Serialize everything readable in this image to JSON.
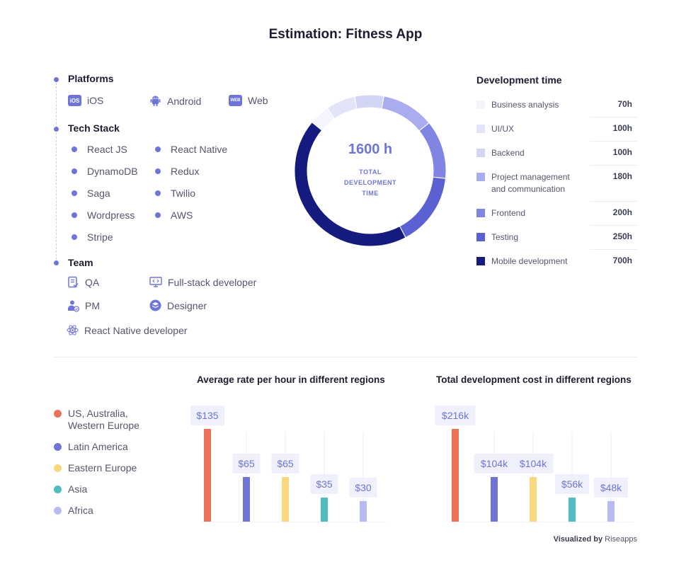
{
  "title": "Estimation: Fitness App",
  "platforms": {
    "title": "Platforms",
    "items": [
      {
        "icon": "ios-icon",
        "badge": "iOS",
        "label": "iOS"
      },
      {
        "icon": "android-icon",
        "label": "Android"
      },
      {
        "icon": "web-icon",
        "badge": "WEB",
        "label": "Web"
      }
    ]
  },
  "tech_stack": {
    "title": "Tech Stack",
    "items": [
      "React JS",
      "React Native",
      "DynamoDB",
      "Redux",
      "Saga",
      "Twilio",
      "Wordpress",
      "AWS",
      "Stripe"
    ]
  },
  "team": {
    "title": "Team",
    "items": [
      {
        "icon": "qa-icon",
        "label": "QA"
      },
      {
        "icon": "monitor-code-icon",
        "label": "Full-stack developer"
      },
      {
        "icon": "pm-icon",
        "label": "PM"
      },
      {
        "icon": "layers-icon",
        "label": "Designer"
      },
      {
        "icon": "atom-icon",
        "label": "React Native developer"
      }
    ]
  },
  "donut": {
    "total": "1600 h",
    "sub": [
      "TOTAL",
      "DEVELOPMENT",
      "TIME"
    ]
  },
  "dev_time": {
    "title": "Development time",
    "rows": [
      {
        "label": "Business analysis",
        "hours": "70h",
        "color": "#f3f4fc"
      },
      {
        "label": "UI/UX",
        "hours": "100h",
        "color": "#e3e4f8"
      },
      {
        "label": "Backend",
        "hours": "100h",
        "color": "#d3d5f4"
      },
      {
        "label": "Project management and communication",
        "hours": "180h",
        "color": "#a9acee"
      },
      {
        "label": "Frontend",
        "hours": "200h",
        "color": "#8085e4"
      },
      {
        "label": "Testing",
        "hours": "250h",
        "color": "#5b60d3"
      },
      {
        "label": "Mobile development",
        "hours": "700h",
        "color": "#141a7e"
      }
    ]
  },
  "regions": [
    {
      "label": "US, Australia, Western Europe",
      "color": "#ec7259"
    },
    {
      "label": "Latin America",
      "color": "#6f75d6"
    },
    {
      "label": "Eastern Europe",
      "color": "#f9d77e"
    },
    {
      "label": "Asia",
      "color": "#4fbcc0"
    },
    {
      "label": "Africa",
      "color": "#b8bbef"
    }
  ],
  "chart_data": [
    {
      "type": "donut",
      "title": "",
      "total": 1600,
      "categories": [
        "Business analysis",
        "UI/UX",
        "Backend",
        "Project management and communication",
        "Frontend",
        "Testing",
        "Mobile development"
      ],
      "values": [
        70,
        100,
        100,
        180,
        200,
        250,
        700
      ],
      "colors": [
        "#f3f4fc",
        "#e3e4f8",
        "#d3d5f4",
        "#a9acee",
        "#8085e4",
        "#5b60d3",
        "#141a7e"
      ]
    },
    {
      "type": "bar",
      "title": "Average rate per hour in different regions",
      "categories": [
        "US, Australia, Western Europe",
        "Latin America",
        "Eastern Europe",
        "Asia",
        "Africa"
      ],
      "values": [
        135,
        65,
        65,
        35,
        30
      ],
      "labels": [
        "$135",
        "$65",
        "$65",
        "$35",
        "$30"
      ],
      "colors": [
        "#ec7259",
        "#6f75d6",
        "#f9d77e",
        "#4fbcc0",
        "#b8bbef"
      ],
      "ylim": [
        0,
        135
      ]
    },
    {
      "type": "bar",
      "title": "Total development cost in different regions",
      "categories": [
        "US, Australia, Western Europe",
        "Latin America",
        "Eastern Europe",
        "Asia",
        "Africa"
      ],
      "values": [
        216,
        104,
        104,
        56,
        48
      ],
      "labels": [
        "$216k",
        "$104k",
        "$104k",
        "$56k",
        "$48k"
      ],
      "colors": [
        "#ec7259",
        "#6f75d6",
        "#f9d77e",
        "#4fbcc0",
        "#b8bbef"
      ],
      "ylim": [
        0,
        216
      ]
    }
  ],
  "footer": {
    "prefix": "Visualized by",
    "brand": "Riseapps"
  }
}
